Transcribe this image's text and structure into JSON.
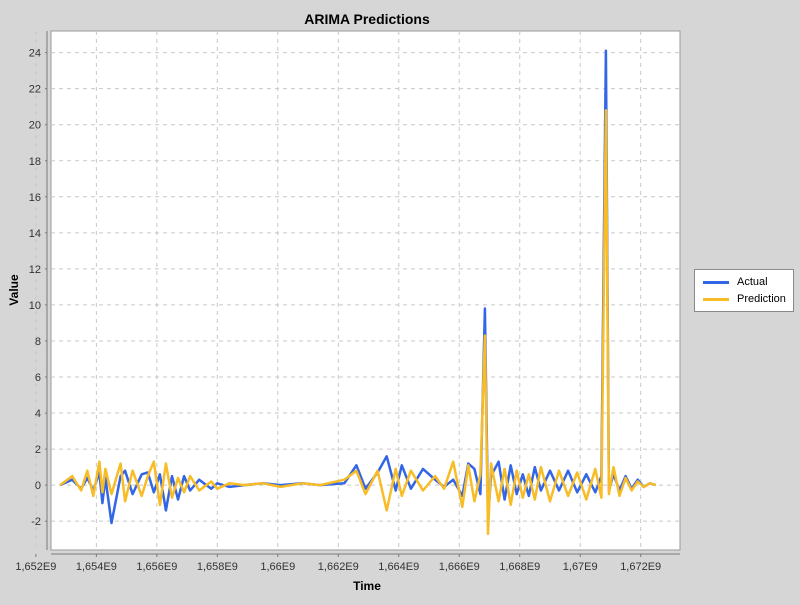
{
  "chart_data": {
    "type": "line",
    "title": "ARIMA Predictions",
    "xlabel": "Time",
    "ylabel": "Value",
    "xlim": [
      1652500000,
      1673300000
    ],
    "ylim": [
      -3.6,
      25.2
    ],
    "x_ticks": [
      1652000000,
      1654000000,
      1656000000,
      1658000000,
      1660000000,
      1662000000,
      1664000000,
      1666000000,
      1668000000,
      1670000000,
      1672000000
    ],
    "x_tick_labels": [
      "1,652E9",
      "1,654E9",
      "1,656E9",
      "1,658E9",
      "1,66E9",
      "1,662E9",
      "1,664E9",
      "1,666E9",
      "1,668E9",
      "1,67E9",
      "1,672E9"
    ],
    "y_ticks": [
      -2,
      0,
      2,
      4,
      6,
      8,
      10,
      12,
      14,
      16,
      18,
      20,
      22,
      24
    ],
    "y_tick_labels": [
      "-2",
      "0",
      "2",
      "4",
      "6",
      "8",
      "10",
      "12",
      "14",
      "16",
      "18",
      "20",
      "22",
      "24"
    ],
    "grid": true,
    "legend_position": "right",
    "series": [
      {
        "name": "Actual",
        "color": "#3366e6",
        "x": [
          1652800000,
          1653200000,
          1653500000,
          1653700000,
          1653900000,
          1654100000,
          1654200000,
          1654300000,
          1654500000,
          1654800000,
          1654950000,
          1655200000,
          1655500000,
          1655700000,
          1655900000,
          1656100000,
          1656300000,
          1656500000,
          1656700000,
          1656900000,
          1657100000,
          1657400000,
          1657800000,
          1658000000,
          1658400000,
          1658900000,
          1659500000,
          1660100000,
          1660800000,
          1661400000,
          1662200000,
          1662600000,
          1662900000,
          1663300000,
          1663600000,
          1663900000,
          1664100000,
          1664400000,
          1664800000,
          1665200000,
          1665500000,
          1665800000,
          1666100000,
          1666300000,
          1666500000,
          1666700000,
          1666850000,
          1666950000,
          1667050000,
          1667300000,
          1667500000,
          1667700000,
          1667900000,
          1668100000,
          1668300000,
          1668500000,
          1668700000,
          1669000000,
          1669300000,
          1669600000,
          1669900000,
          1670200000,
          1670500000,
          1670700000,
          1670850000,
          1670950000,
          1671100000,
          1671300000,
          1671500000,
          1671700000,
          1671900000,
          1672100000,
          1672300000,
          1672500000
        ],
        "y": [
          0,
          0.3,
          -0.2,
          0.4,
          -0.3,
          0.7,
          -1.0,
          0.4,
          -2.1,
          0.5,
          0.8,
          -0.5,
          0.6,
          0.7,
          -0.4,
          0.6,
          -1.4,
          0.5,
          -0.8,
          0.5,
          -0.3,
          0.3,
          -0.2,
          0.1,
          -0.1,
          0,
          0.1,
          0,
          0.1,
          0,
          0.1,
          1.1,
          -0.2,
          0.7,
          1.6,
          -0.3,
          1.1,
          -0.2,
          0.9,
          0.3,
          -0.1,
          0.3,
          -0.6,
          1.2,
          0.9,
          -0.5,
          9.8,
          -1.8,
          0.5,
          1.3,
          -0.8,
          1.1,
          -0.5,
          0.6,
          -0.6,
          1.0,
          -0.3,
          0.8,
          -0.3,
          0.8,
          -0.4,
          0.6,
          -0.4,
          0.5,
          24.1,
          -0.3,
          0.6,
          -0.3,
          0.5,
          -0.2,
          0.3,
          -0.1,
          0.1,
          0
        ]
      },
      {
        "name": "Prediction",
        "color": "#f8bc27",
        "x": [
          1652800000,
          1653200000,
          1653500000,
          1653700000,
          1653900000,
          1654100000,
          1654200000,
          1654300000,
          1654500000,
          1654800000,
          1654950000,
          1655200000,
          1655500000,
          1655700000,
          1655900000,
          1656100000,
          1656300000,
          1656500000,
          1656700000,
          1656900000,
          1657100000,
          1657400000,
          1657800000,
          1658000000,
          1658400000,
          1658900000,
          1659500000,
          1660100000,
          1660800000,
          1661400000,
          1662200000,
          1662600000,
          1662900000,
          1663300000,
          1663600000,
          1663900000,
          1664100000,
          1664400000,
          1664800000,
          1665200000,
          1665500000,
          1665800000,
          1666100000,
          1666300000,
          1666500000,
          1666700000,
          1666850000,
          1666950000,
          1667050000,
          1667300000,
          1667500000,
          1667700000,
          1667900000,
          1668100000,
          1668300000,
          1668500000,
          1668700000,
          1669000000,
          1669300000,
          1669600000,
          1669900000,
          1670200000,
          1670500000,
          1670700000,
          1670850000,
          1670950000,
          1671100000,
          1671300000,
          1671500000,
          1671700000,
          1671900000,
          1672100000,
          1672300000,
          1672500000
        ],
        "y": [
          0,
          0.5,
          -0.3,
          0.8,
          -0.6,
          1.3,
          -0.4,
          0.9,
          -0.5,
          1.2,
          -0.9,
          0.8,
          -0.6,
          0.5,
          1.3,
          -1.1,
          1.2,
          -0.7,
          0.4,
          -0.4,
          0.5,
          -0.3,
          0.2,
          -0.2,
          0.1,
          0,
          0.1,
          -0.1,
          0.1,
          0,
          0.3,
          0.8,
          -0.5,
          0.8,
          -1.4,
          0.9,
          -0.6,
          0.8,
          -0.3,
          0.5,
          -0.2,
          1.3,
          -1.2,
          1.1,
          -0.9,
          0.6,
          8.3,
          -2.7,
          1.2,
          -0.9,
          0.9,
          -1.1,
          0.8,
          -0.7,
          0.6,
          -0.8,
          1.0,
          -0.9,
          0.8,
          -0.6,
          0.7,
          -0.8,
          0.9,
          -0.7,
          20.8,
          -0.5,
          1.0,
          -0.6,
          0.4,
          -0.3,
          0.2,
          -0.1,
          0.1,
          0
        ]
      }
    ]
  }
}
